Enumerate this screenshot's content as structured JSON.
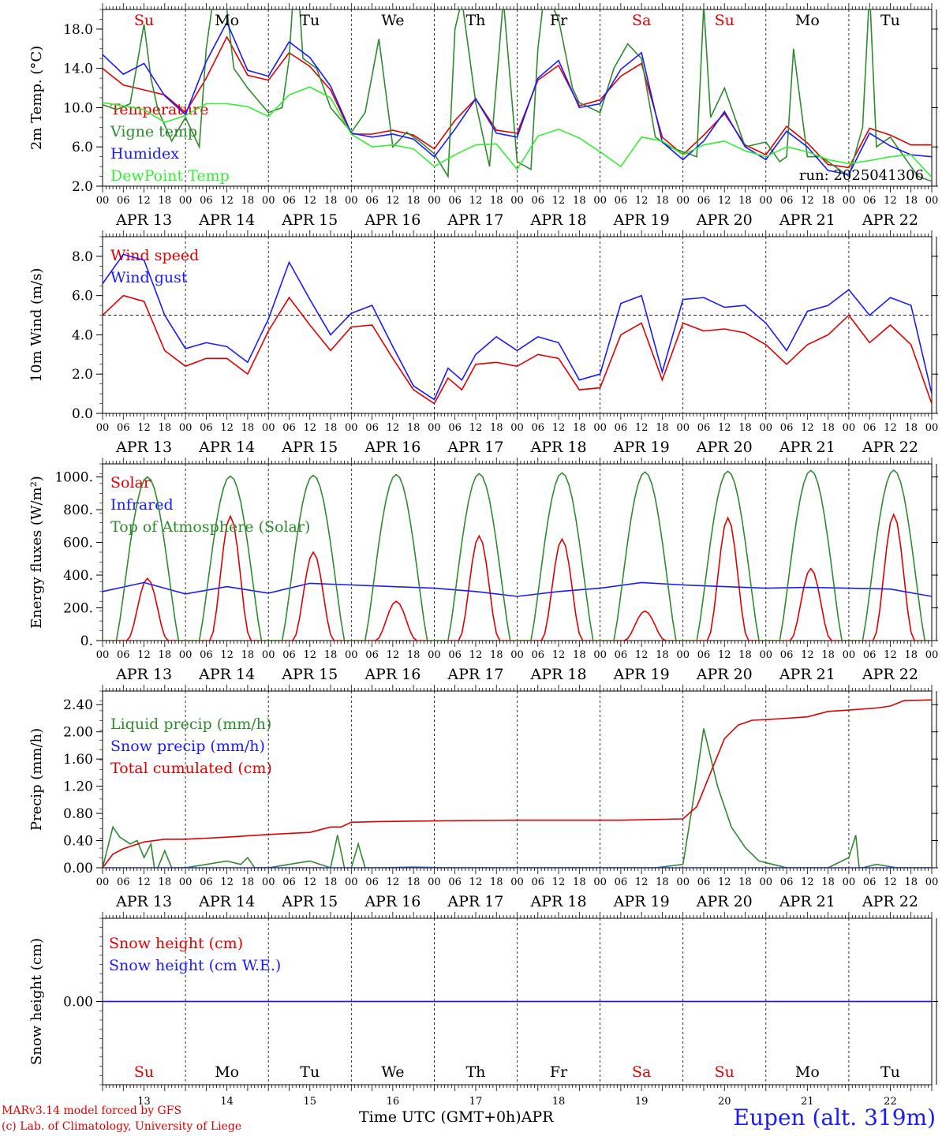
{
  "run_label": "run: 2025041306",
  "footer": {
    "model": "MARv3.14 model forced by GFS",
    "credit": "(c) Lab. of Climatology, University of Liege",
    "station": "Eupen (alt. 319m)",
    "xlabel": "Time UTC (GMT+0h)",
    "month": "APR"
  },
  "days": {
    "weekdays": [
      "Su",
      "Mo",
      "Tu",
      "We",
      "Th",
      "Fr",
      "Sa",
      "Su",
      "Mo",
      "Tu"
    ],
    "weekend_color": "#e00000",
    "dates": [
      "APR 13",
      "APR 14",
      "APR 15",
      "APR 16",
      "APR 17",
      "APR 18",
      "APR 19",
      "APR 20",
      "APR 21",
      "APR 22"
    ],
    "day_numbers": [
      "13",
      "14",
      "15",
      "16",
      "17",
      "18",
      "19",
      "20",
      "21",
      "22"
    ],
    "hour_ticks": [
      "00",
      "06",
      "12",
      "18"
    ],
    "final_tick": "00"
  },
  "chart_data": [
    {
      "type": "line",
      "ylabel": "2m Temp. (°C)",
      "ylim": [
        2.0,
        20.0
      ],
      "yticks": [
        "2.0",
        "6.0",
        "10.0",
        "14.0",
        "18.0"
      ],
      "x_unit": "hours since APR 13 00 UTC",
      "series": [
        {
          "name": "Temperature",
          "color": "#e00000",
          "x": [
            0,
            6,
            12,
            18,
            24,
            30,
            36,
            42,
            48,
            54,
            60,
            66,
            72,
            78,
            84,
            90,
            96,
            102,
            108,
            114,
            120,
            126,
            132,
            138,
            144,
            150,
            156,
            162,
            168,
            174,
            180,
            186,
            192,
            198,
            204,
            210,
            216,
            222,
            228,
            234,
            240
          ],
          "y": [
            14.0,
            12.3,
            11.8,
            11.3,
            9.5,
            13.0,
            17.2,
            13.3,
            12.8,
            15.6,
            14.2,
            11.8,
            7.3,
            7.3,
            7.7,
            7.2,
            5.8,
            8.7,
            10.9,
            7.7,
            7.4,
            12.8,
            14.3,
            10.2,
            10.8,
            13.2,
            14.5,
            7.0,
            5.2,
            7.2,
            9.4,
            6.2,
            5.2,
            8.1,
            6.4,
            4.2,
            3.9,
            7.9,
            7.2,
            6.2,
            6.2
          ]
        },
        {
          "name": "Vigne temp",
          "color": "#2e8b2e",
          "x": [
            0,
            4,
            8,
            12,
            14,
            16,
            20,
            24,
            28,
            30,
            32,
            36,
            38,
            42,
            48,
            52,
            54,
            56,
            58,
            62,
            66,
            72,
            76,
            80,
            84,
            88,
            92,
            96,
            100,
            102,
            104,
            108,
            112,
            116,
            120,
            124,
            126,
            128,
            132,
            136,
            138,
            144,
            148,
            152,
            156,
            160,
            164,
            168,
            172,
            174,
            176,
            180,
            184,
            186,
            192,
            196,
            198,
            200,
            204,
            208,
            212,
            216,
            220,
            222,
            224,
            228,
            232,
            236,
            240
          ],
          "y": [
            10.3,
            9.8,
            10.4,
            18.5,
            13.0,
            9.8,
            6.6,
            9.0,
            6.0,
            16.0,
            21.0,
            20.0,
            14.0,
            12.0,
            9.5,
            10.0,
            15.0,
            26.0,
            15.0,
            14.0,
            10.0,
            7.5,
            9.5,
            17.0,
            6.0,
            7.5,
            6.5,
            5.3,
            3.0,
            18.0,
            21.0,
            10.5,
            4.0,
            21.0,
            4.5,
            3.7,
            16.0,
            22.0,
            19.0,
            12.0,
            10.5,
            9.5,
            14.0,
            16.5,
            15.0,
            7.0,
            6.0,
            5.5,
            5.0,
            20.5,
            9.0,
            12.0,
            8.0,
            6.0,
            6.5,
            4.5,
            5.0,
            16.0,
            5.0,
            5.0,
            4.0,
            3.0,
            8.0,
            22.0,
            6.0,
            7.0,
            5.0,
            3.0,
            2.5
          ]
        },
        {
          "name": "Humidex",
          "color": "#1a1aff",
          "x": [
            0,
            6,
            12,
            18,
            24,
            30,
            36,
            42,
            48,
            54,
            60,
            66,
            72,
            78,
            84,
            90,
            96,
            102,
            108,
            114,
            120,
            126,
            132,
            138,
            144,
            150,
            156,
            162,
            168,
            174,
            180,
            186,
            192,
            198,
            204,
            210,
            216,
            222,
            228,
            234,
            240
          ],
          "y": [
            15.4,
            13.4,
            14.5,
            11.2,
            9.3,
            14.7,
            18.7,
            13.8,
            13.2,
            16.7,
            15.1,
            12.2,
            7.4,
            7.0,
            7.3,
            6.8,
            5.0,
            7.8,
            10.9,
            7.4,
            7.0,
            13.0,
            14.8,
            10.0,
            10.4,
            13.9,
            15.6,
            6.5,
            4.7,
            6.6,
            9.6,
            6.0,
            4.7,
            7.6,
            6.0,
            3.6,
            3.2,
            7.4,
            6.1,
            5.2,
            5.0
          ]
        },
        {
          "name": "DewPoint Temp",
          "color": "#33ee33",
          "x": [
            0,
            6,
            12,
            18,
            24,
            30,
            36,
            42,
            48,
            54,
            60,
            66,
            72,
            78,
            84,
            90,
            96,
            102,
            108,
            114,
            120,
            126,
            132,
            138,
            144,
            150,
            156,
            162,
            168,
            174,
            180,
            186,
            192,
            198,
            204,
            210,
            216,
            222,
            228,
            234,
            240
          ],
          "y": [
            10.5,
            10.2,
            9.8,
            8.5,
            9.2,
            10.4,
            10.4,
            10.1,
            9.1,
            11.3,
            12.1,
            11.0,
            7.3,
            6.0,
            6.2,
            5.8,
            4.0,
            5.2,
            6.2,
            6.3,
            3.7,
            7.1,
            7.8,
            6.9,
            5.5,
            4.0,
            7.0,
            6.6,
            5.2,
            6.2,
            6.6,
            5.6,
            5.0,
            6.0,
            5.5,
            4.7,
            4.3,
            4.6,
            5.0,
            5.2,
            2.9
          ]
        }
      ]
    },
    {
      "type": "line",
      "ylabel": "10m Wind (m/s)",
      "ylim": [
        0.0,
        9.0
      ],
      "yticks": [
        "0.0",
        "2.0",
        "4.0",
        "6.0",
        "8.0"
      ],
      "reference_line": 5.0,
      "series": [
        {
          "name": "Wind speed",
          "color": "#e00000",
          "x": [
            0,
            6,
            12,
            18,
            24,
            30,
            36,
            42,
            48,
            54,
            60,
            66,
            72,
            78,
            84,
            90,
            96,
            100,
            104,
            108,
            114,
            120,
            126,
            132,
            138,
            144,
            150,
            156,
            162,
            168,
            174,
            180,
            186,
            192,
            198,
            204,
            210,
            216,
            222,
            228,
            234,
            240
          ],
          "y": [
            5.0,
            6.0,
            5.7,
            3.2,
            2.4,
            2.8,
            2.8,
            2.0,
            4.2,
            5.9,
            4.5,
            3.2,
            4.4,
            4.5,
            2.8,
            1.2,
            0.5,
            1.8,
            1.2,
            2.5,
            2.6,
            2.4,
            3.0,
            2.8,
            1.2,
            1.3,
            4.0,
            4.6,
            1.7,
            4.6,
            4.2,
            4.3,
            4.1,
            3.5,
            2.5,
            3.5,
            4.0,
            5.0,
            3.6,
            4.5,
            3.5,
            0.5
          ]
        },
        {
          "name": "Wind gust",
          "color": "#1a1aff",
          "x": [
            0,
            6,
            12,
            18,
            24,
            30,
            36,
            42,
            48,
            54,
            60,
            66,
            72,
            78,
            84,
            90,
            96,
            100,
            104,
            108,
            114,
            120,
            126,
            132,
            138,
            144,
            150,
            156,
            162,
            168,
            174,
            180,
            186,
            192,
            198,
            204,
            210,
            216,
            222,
            228,
            234,
            240
          ],
          "y": [
            6.6,
            8.1,
            7.8,
            5.0,
            3.3,
            3.6,
            3.4,
            2.6,
            4.8,
            7.7,
            5.8,
            4.0,
            5.1,
            5.5,
            3.4,
            1.4,
            0.7,
            2.3,
            1.7,
            3.0,
            3.9,
            3.2,
            3.9,
            3.6,
            1.7,
            2.0,
            5.6,
            6.0,
            2.1,
            5.8,
            5.9,
            5.4,
            5.5,
            4.6,
            3.2,
            5.2,
            5.5,
            6.3,
            5.0,
            5.9,
            5.5,
            1.0
          ]
        }
      ]
    },
    {
      "type": "line",
      "ylabel": "Energy fluxes (W/m²)",
      "ylim": [
        0.0,
        1080.0
      ],
      "yticks": [
        "0.",
        "200.",
        "400.",
        "600.",
        "800.",
        "1000."
      ],
      "series": [
        {
          "name": "Solar",
          "color": "#e00000",
          "peaks": [
            380,
            760,
            540,
            240,
            640,
            620,
            180,
            750,
            440,
            770
          ]
        },
        {
          "name": "Infrared",
          "color": "#1a1aff",
          "x": [
            0,
            12,
            24,
            36,
            48,
            60,
            72,
            84,
            96,
            108,
            120,
            132,
            144,
            156,
            168,
            180,
            192,
            204,
            216,
            228,
            240
          ],
          "y": [
            300,
            355,
            285,
            330,
            290,
            350,
            340,
            330,
            320,
            300,
            270,
            300,
            320,
            355,
            340,
            330,
            320,
            325,
            320,
            315,
            270
          ]
        },
        {
          "name": "Top of Atmosphere (Solar)",
          "color": "#2e8b2e",
          "peaks": [
            1000,
            1005,
            1010,
            1015,
            1020,
            1025,
            1030,
            1035,
            1040,
            1042
          ]
        }
      ]
    },
    {
      "type": "line",
      "ylabel": "Precip (mm/h)",
      "ylim": [
        0.0,
        2.6
      ],
      "yticks": [
        "0.00",
        "0.40",
        "0.80",
        "1.20",
        "1.60",
        "2.00",
        "2.40"
      ],
      "series": [
        {
          "name": "Liquid precip (mm/h)",
          "color": "#2e8b2e",
          "x": [
            0,
            3,
            5,
            8,
            10,
            12,
            14,
            15,
            16,
            18,
            20,
            24,
            36,
            40,
            42,
            44,
            48,
            54,
            60,
            66,
            68,
            70,
            72,
            74,
            76,
            80,
            90,
            100,
            110,
            120,
            140,
            160,
            168,
            171,
            174,
            178,
            182,
            186,
            190,
            194,
            198,
            204,
            210,
            216,
            218,
            219,
            220,
            224,
            230,
            240
          ],
          "y": [
            0.0,
            0.6,
            0.45,
            0.35,
            0.4,
            0.15,
            0.35,
            0.0,
            0.0,
            0.25,
            0.0,
            0.0,
            0.1,
            0.05,
            0.15,
            0.0,
            0.0,
            0.05,
            0.1,
            0.0,
            0.48,
            0.0,
            0.0,
            0.35,
            0.0,
            0.0,
            0.01,
            0.0,
            0.0,
            0.0,
            0.0,
            0.0,
            0.05,
            1.0,
            2.05,
            1.2,
            0.6,
            0.3,
            0.1,
            0.05,
            0.0,
            0.0,
            0.0,
            0.15,
            0.48,
            0.0,
            0.0,
            0.05,
            0.0,
            0.0
          ]
        },
        {
          "name": "Snow precip (mm/h)",
          "color": "#1a1aff",
          "x": [
            0,
            240
          ],
          "y": [
            0,
            0
          ]
        },
        {
          "name": "Total cumulated (cm)",
          "color": "#e00000",
          "x": [
            0,
            3,
            6,
            12,
            18,
            24,
            36,
            48,
            60,
            66,
            69,
            72,
            80,
            96,
            120,
            150,
            168,
            172,
            176,
            180,
            184,
            188,
            192,
            198,
            204,
            210,
            216,
            224,
            228,
            232,
            240
          ],
          "y": [
            0.0,
            0.2,
            0.28,
            0.38,
            0.42,
            0.42,
            0.45,
            0.49,
            0.52,
            0.6,
            0.6,
            0.67,
            0.68,
            0.69,
            0.7,
            0.7,
            0.72,
            0.9,
            1.4,
            1.9,
            2.1,
            2.17,
            2.18,
            2.2,
            2.22,
            2.3,
            2.32,
            2.35,
            2.38,
            2.46,
            2.47
          ]
        }
      ]
    },
    {
      "type": "line",
      "ylabel": "Snow height (cm)",
      "ylim": [
        -1.0,
        1.0
      ],
      "yticks": [
        "0.00"
      ],
      "series": [
        {
          "name": "Snow height (cm)",
          "color": "#e00000",
          "x": [
            0,
            240
          ],
          "y": [
            0,
            0
          ]
        },
        {
          "name": "Snow height (cm W.E.)",
          "color": "#1a1aff",
          "x": [
            0,
            240
          ],
          "y": [
            0,
            0
          ]
        }
      ]
    }
  ]
}
